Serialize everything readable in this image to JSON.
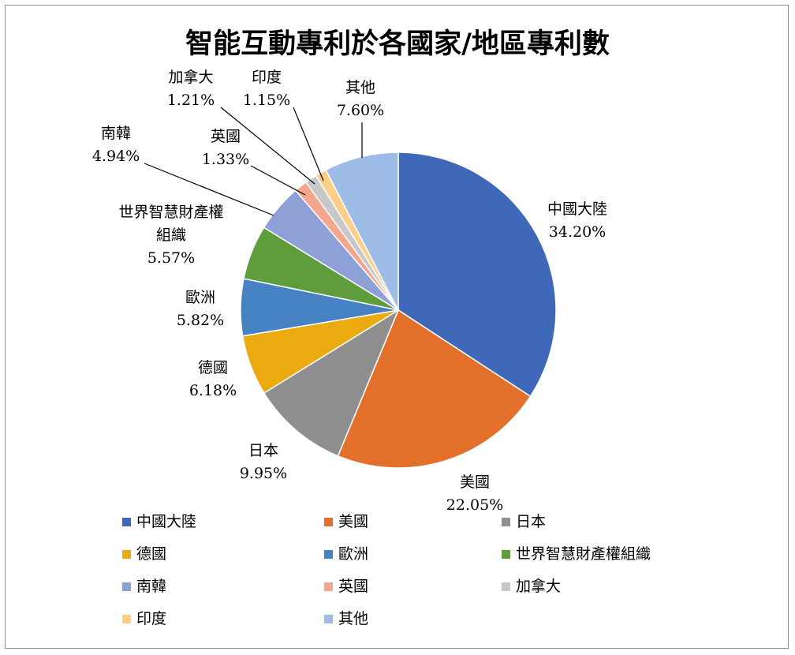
{
  "chart_data": {
    "type": "pie",
    "title": "智能互動專利於各國家/地區專利數",
    "slices": [
      {
        "name": "中國大陸",
        "value": 34.2,
        "label": "34.20%",
        "color": "#4068b8",
        "label_lines": [
          "中國大陸"
        ]
      },
      {
        "name": "美國",
        "value": 22.05,
        "label": "22.05%",
        "color": "#e2702a",
        "label_lines": [
          "美國"
        ]
      },
      {
        "name": "日本",
        "value": 9.95,
        "label": "9.95%",
        "color": "#8f8f8f",
        "label_lines": [
          "日本"
        ]
      },
      {
        "name": "德國",
        "value": 6.18,
        "label": "6.18%",
        "color": "#eaaa10",
        "label_lines": [
          "德國"
        ]
      },
      {
        "name": "歐洲",
        "value": 5.82,
        "label": "5.82%",
        "color": "#4682c2",
        "label_lines": [
          "歐洲"
        ]
      },
      {
        "name": "世界智慧財產權組織",
        "value": 5.57,
        "label": "5.57%",
        "color": "#5e9c3c",
        "label_lines": [
          "世界智慧財產權",
          "組織"
        ]
      },
      {
        "name": "南韓",
        "value": 4.94,
        "label": "4.94%",
        "color": "#8ea1d6",
        "label_lines": [
          "南韓"
        ]
      },
      {
        "name": "英國",
        "value": 1.33,
        "label": "1.33%",
        "color": "#f5a68e",
        "label_lines": [
          "英國"
        ]
      },
      {
        "name": "加拿大",
        "value": 1.21,
        "label": "1.21%",
        "color": "#c8c8c8",
        "label_lines": [
          "加拿大"
        ]
      },
      {
        "name": "印度",
        "value": 1.15,
        "label": "1.15%",
        "color": "#fcce8a",
        "label_lines": [
          "印度"
        ]
      },
      {
        "name": "其他",
        "value": 7.6,
        "label": "7.60%",
        "color": "#9dbde6",
        "label_lines": [
          "其他"
        ]
      }
    ],
    "legend_placement": "bottom",
    "start_angle": "12 o'clock",
    "direction": "clockwise"
  }
}
